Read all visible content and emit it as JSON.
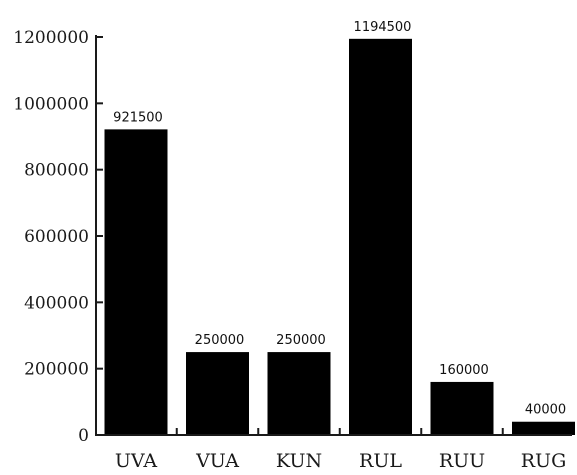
{
  "chart_data": {
    "type": "bar",
    "title": "",
    "xlabel": "",
    "ylabel": "",
    "categories": [
      "UVA",
      "VUA",
      "KUN",
      "RUL",
      "RUU",
      "RUG"
    ],
    "values": [
      921500,
      250000,
      250000,
      1194500,
      160000,
      40000
    ],
    "data_labels": [
      "921500",
      "250000",
      "250000",
      "1194500",
      "160000",
      "40000"
    ],
    "ylim": [
      0,
      1200000
    ],
    "yticks": [
      0,
      200000,
      400000,
      600000,
      800000,
      1000000,
      1200000
    ],
    "ytick_labels": [
      "0",
      "200000",
      "400000",
      "600000",
      "800000",
      "1000000",
      "1200000"
    ],
    "grid": false,
    "legend": "none",
    "colors": {
      "bar": "#000000",
      "axis": "#1a1a1a",
      "text": "#1a1a1a"
    }
  }
}
